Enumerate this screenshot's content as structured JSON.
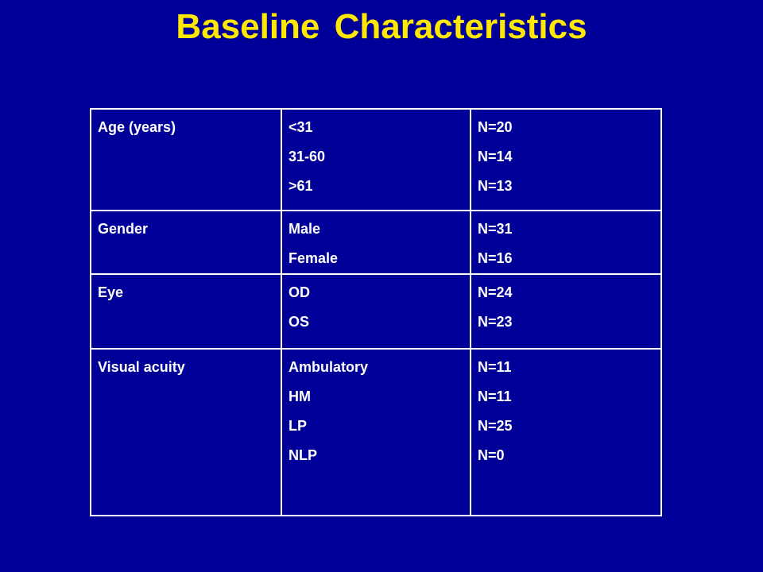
{
  "title": "Baseline Characteristics",
  "colors": {
    "background": "#000099",
    "title": "#FFE800",
    "text": "#FFFFFF",
    "border": "#FFFFFF"
  },
  "rows": [
    {
      "label": "Age (years)",
      "categories": [
        "<31",
        "31-60",
        ">61"
      ],
      "counts": [
        "N=20",
        "N=14",
        "N=13"
      ]
    },
    {
      "label": "Gender",
      "categories": [
        "Male",
        "Female"
      ],
      "counts": [
        "N=31",
        "N=16"
      ]
    },
    {
      "label": "Eye",
      "categories": [
        "OD",
        "OS"
      ],
      "counts": [
        "N=24",
        "N=23"
      ]
    },
    {
      "label": "Visual acuity",
      "categories": [
        "Ambulatory",
        "HM",
        "LP",
        "NLP"
      ],
      "counts": [
        "N=11",
        "N=11",
        "N=25",
        "N=0"
      ]
    }
  ]
}
